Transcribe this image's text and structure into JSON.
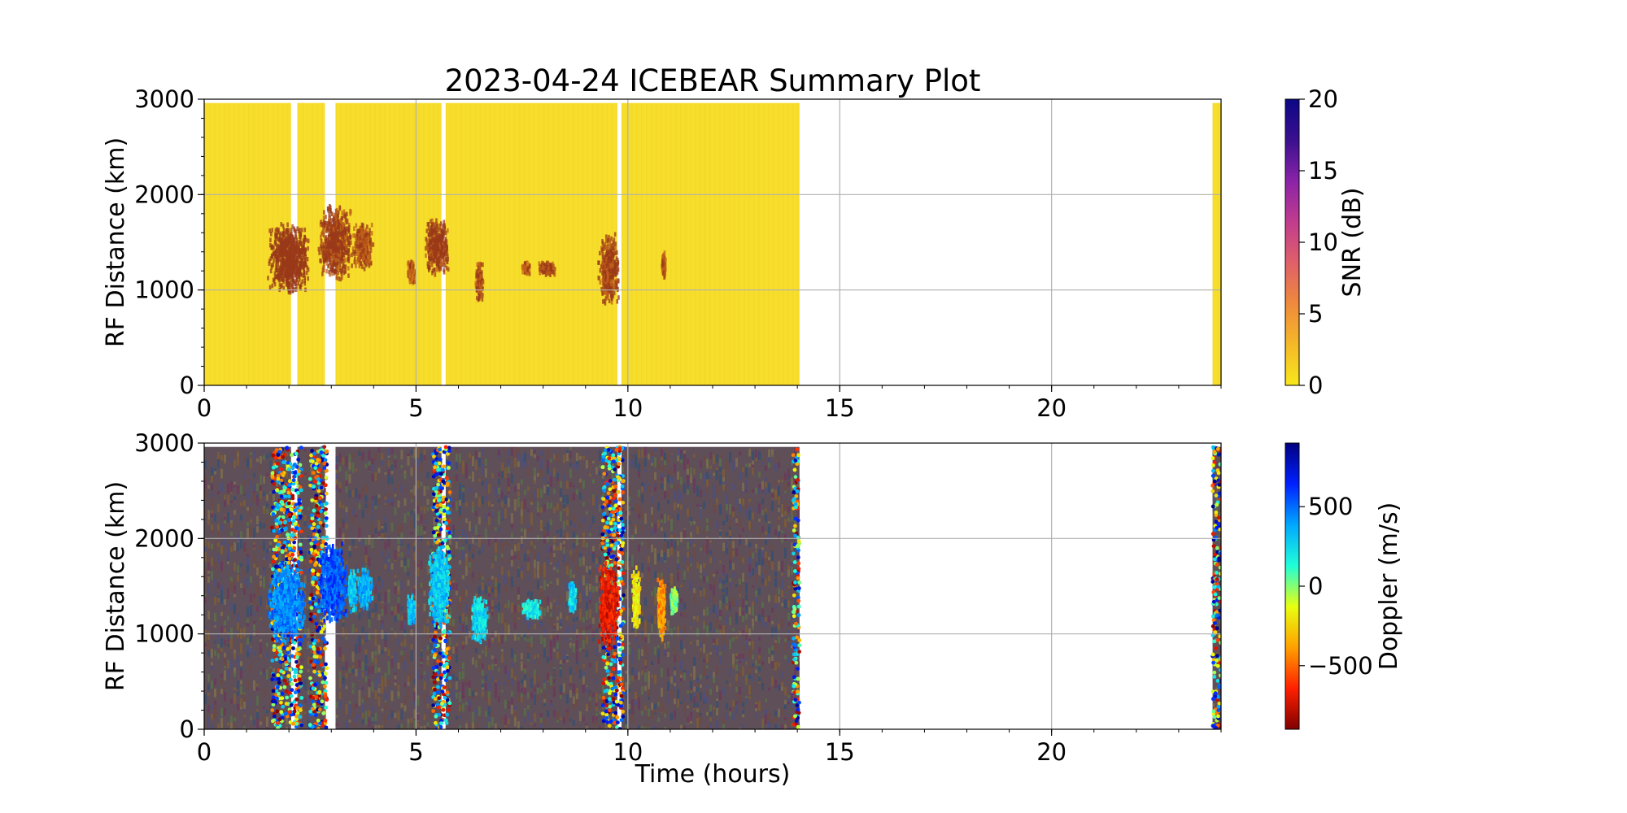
{
  "chart_data": [
    {
      "type": "heatmap",
      "id": "snr",
      "title": "2023-04-24 ICEBEAR Summary Plot",
      "xlabel": "",
      "ylabel": "RF Distance (km)",
      "xlim": [
        0,
        24
      ],
      "ylim": [
        0,
        3000
      ],
      "xticks": [
        0,
        5,
        10,
        15,
        20
      ],
      "xtick_labels": [
        "0",
        "5",
        "10",
        "15",
        "20"
      ],
      "yticks": [
        0,
        1000,
        2000,
        3000
      ],
      "ytick_labels": [
        "0",
        "1000",
        "2000",
        "3000"
      ],
      "grid": true,
      "colorbar": {
        "label": "SNR (dB)",
        "range": [
          0,
          20
        ],
        "ticks": [
          0,
          5,
          10,
          15,
          20
        ],
        "tick_labels": [
          "0",
          "5",
          "10",
          "15",
          "20"
        ],
        "colormap": [
          "#f8e71c",
          "#f5b928",
          "#ee8a3c",
          "#e0606a",
          "#c13c8e",
          "#8a23a8",
          "#3a0f8f",
          "#0c0786"
        ]
      },
      "background_color": "#f7dd2c",
      "data_intervals_hours": [
        [
          0.0,
          2.05
        ],
        [
          2.2,
          2.85
        ],
        [
          3.1,
          5.6
        ],
        [
          5.7,
          9.75
        ],
        [
          9.85,
          14.05
        ],
        [
          23.8,
          24.0
        ]
      ],
      "echo_regions": [
        {
          "t": [
            1.5,
            2.5
          ],
          "range_km": [
            950,
            1700
          ],
          "snr_db": 4
        },
        {
          "t": [
            2.7,
            3.5
          ],
          "range_km": [
            1100,
            1900
          ],
          "snr_db": 3
        },
        {
          "t": [
            3.5,
            4.0
          ],
          "range_km": [
            1200,
            1700
          ],
          "snr_db": 2
        },
        {
          "t": [
            4.8,
            5.0
          ],
          "range_km": [
            1050,
            1300
          ],
          "snr_db": 1.5
        },
        {
          "t": [
            5.2,
            5.8
          ],
          "range_km": [
            1150,
            1750
          ],
          "snr_db": 3
        },
        {
          "t": [
            6.4,
            6.6
          ],
          "range_km": [
            880,
            1300
          ],
          "snr_db": 2
        },
        {
          "t": [
            7.5,
            7.7
          ],
          "range_km": [
            1150,
            1300
          ],
          "snr_db": 1.5
        },
        {
          "t": [
            7.9,
            8.3
          ],
          "range_km": [
            1150,
            1300
          ],
          "snr_db": 2.5
        },
        {
          "t": [
            9.3,
            9.8
          ],
          "range_km": [
            850,
            1600
          ],
          "snr_db": 2.5
        },
        {
          "t": [
            10.8,
            10.9
          ],
          "range_km": [
            1100,
            1400
          ],
          "snr_db": 2
        }
      ]
    },
    {
      "type": "heatmap",
      "id": "doppler",
      "title": "",
      "xlabel": "Time (hours)",
      "ylabel": "RF Distance (km)",
      "xlim": [
        0,
        24
      ],
      "ylim": [
        0,
        3000
      ],
      "xticks": [
        0,
        5,
        10,
        15,
        20
      ],
      "xtick_labels": [
        "0",
        "5",
        "10",
        "15",
        "20"
      ],
      "yticks": [
        0,
        1000,
        2000,
        3000
      ],
      "ytick_labels": [
        "0",
        "1000",
        "2000",
        "3000"
      ],
      "grid": true,
      "colorbar": {
        "label": "Doppler (m/s)",
        "range": [
          -900,
          900
        ],
        "ticks": [
          -500,
          0,
          500
        ],
        "tick_labels": [
          "−500",
          "0",
          "500"
        ],
        "colormap": [
          "#800000",
          "#ff2000",
          "#ffa000",
          "#e8ff10",
          "#20ffd8",
          "#00a8ff",
          "#0020ff",
          "#000080"
        ]
      },
      "background_colors": [
        "#6b4a46",
        "#4f4f7a",
        "#7a5a3a",
        "#5a6a4a",
        "#6a3a5a",
        "#3a4f6f",
        "#7a6a4f"
      ],
      "data_intervals_hours": [
        [
          0.0,
          2.05
        ],
        [
          2.2,
          2.85
        ],
        [
          3.1,
          5.6
        ],
        [
          5.7,
          9.75
        ],
        [
          9.85,
          14.05
        ],
        [
          23.8,
          24.0
        ]
      ],
      "speckle_bands_hours": [
        [
          1.6,
          2.3
        ],
        [
          2.5,
          2.9
        ],
        [
          5.4,
          5.8
        ],
        [
          9.4,
          9.9
        ],
        [
          13.9,
          14.05
        ],
        [
          23.8,
          24.0
        ]
      ],
      "echo_regions": [
        {
          "t": [
            1.5,
            2.4
          ],
          "range_km": [
            900,
            1750
          ],
          "doppler": 450
        },
        {
          "t": [
            2.7,
            3.4
          ],
          "range_km": [
            1100,
            1950
          ],
          "doppler": 550
        },
        {
          "t": [
            3.4,
            3.6
          ],
          "range_km": [
            1200,
            1700
          ],
          "doppler": 300
        },
        {
          "t": [
            3.6,
            4.0
          ],
          "range_km": [
            1250,
            1700
          ],
          "doppler": 350
        },
        {
          "t": [
            4.8,
            5.0
          ],
          "range_km": [
            1100,
            1400
          ],
          "doppler": 300
        },
        {
          "t": [
            5.3,
            5.8
          ],
          "range_km": [
            1050,
            1950
          ],
          "doppler": 300
        },
        {
          "t": [
            6.3,
            6.7
          ],
          "range_km": [
            900,
            1400
          ],
          "doppler": 250
        },
        {
          "t": [
            7.5,
            8.0
          ],
          "range_km": [
            1150,
            1350
          ],
          "doppler": 200
        },
        {
          "t": [
            8.6,
            8.8
          ],
          "range_km": [
            1200,
            1550
          ],
          "doppler": 250
        },
        {
          "t": [
            9.3,
            9.8
          ],
          "range_km": [
            850,
            1750
          ],
          "doppler": -700
        },
        {
          "t": [
            10.1,
            10.3
          ],
          "range_km": [
            1050,
            1700
          ],
          "doppler": -200
        },
        {
          "t": [
            10.7,
            10.9
          ],
          "range_km": [
            900,
            1600
          ],
          "doppler": -400
        },
        {
          "t": [
            11.0,
            11.2
          ],
          "range_km": [
            1200,
            1500
          ],
          "doppler": 0
        }
      ]
    }
  ]
}
